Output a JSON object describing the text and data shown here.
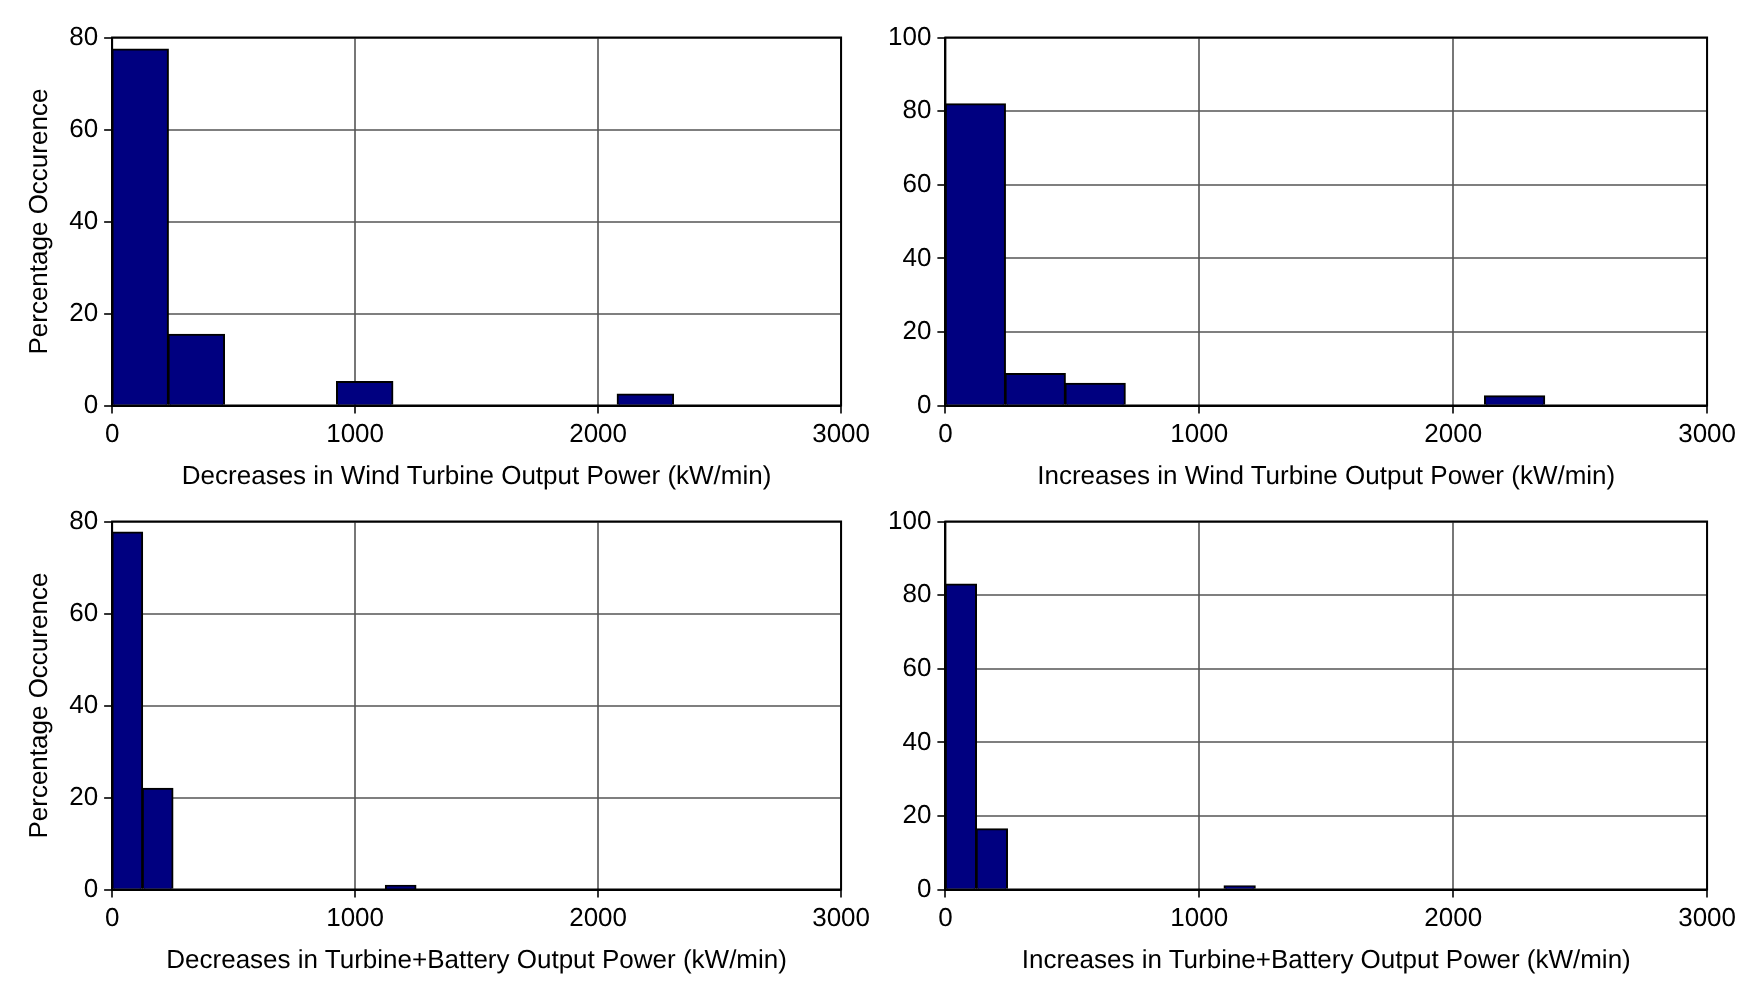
{
  "chart_data": [
    {
      "type": "histogram",
      "ylabel": "Percentage Occurence",
      "xlabel": "Decreases in Wind Turbine Output Power (kW/min)",
      "bins": [
        0,
        231,
        462,
        693,
        924,
        1155,
        1386,
        1617,
        1848,
        2079,
        2310
      ],
      "values": [
        77.5,
        15.5,
        0,
        0,
        5.2,
        0,
        0,
        0,
        0,
        2.5
      ],
      "color": "#000080",
      "xlim": [
        0,
        3000
      ],
      "xticks": [
        0,
        1000,
        2000,
        3000
      ],
      "ylim": [
        0,
        80
      ],
      "yticks": [
        0,
        20,
        40,
        60,
        80
      ],
      "grid": true
    },
    {
      "type": "histogram",
      "xlabel": "Increases in Wind Turbine Output Power (kW/min)",
      "bins": [
        0,
        236,
        472,
        708,
        944,
        1180,
        1416,
        1652,
        1888,
        2124,
        2360
      ],
      "values": [
        82,
        8.7,
        6,
        0,
        0,
        0,
        0,
        0,
        0,
        2.6
      ],
      "color": "#000080",
      "xlim": [
        0,
        3000
      ],
      "xticks": [
        0,
        1000,
        2000,
        3000
      ],
      "ylim": [
        0,
        100
      ],
      "yticks": [
        0,
        20,
        40,
        60,
        80,
        100
      ],
      "grid": true
    },
    {
      "type": "histogram",
      "ylabel": "Percentage Occurence",
      "xlabel": "Decreases in Turbine+Battery Output Power (kW/min)",
      "bins": [
        0,
        125,
        250,
        375,
        500,
        625,
        750,
        875,
        1000,
        1125,
        1250
      ],
      "values": [
        77.7,
        22,
        0,
        0,
        0,
        0,
        0,
        0,
        0,
        0.9
      ],
      "color": "#000080",
      "xlim": [
        0,
        3000
      ],
      "xticks": [
        0,
        1000,
        2000,
        3000
      ],
      "ylim": [
        0,
        80
      ],
      "yticks": [
        0,
        20,
        40,
        60,
        80
      ],
      "grid": true
    },
    {
      "type": "histogram",
      "xlabel": "Increases in Turbine+Battery Output Power (kW/min)",
      "bins": [
        0,
        122,
        244,
        366,
        488,
        610,
        732,
        854,
        976,
        1098,
        1220
      ],
      "values": [
        83,
        16.5,
        0,
        0,
        0,
        0,
        0,
        0,
        0,
        1
      ],
      "color": "#000080",
      "xlim": [
        0,
        3000
      ],
      "xticks": [
        0,
        1000,
        2000,
        3000
      ],
      "ylim": [
        0,
        100
      ],
      "yticks": [
        0,
        20,
        40,
        60,
        80,
        100
      ],
      "grid": true
    }
  ]
}
